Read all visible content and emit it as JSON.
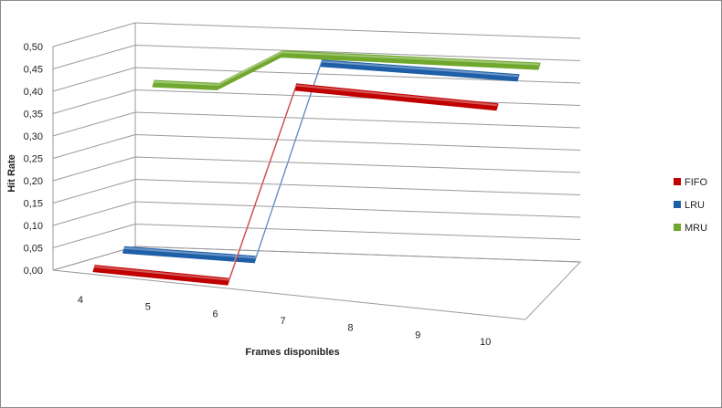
{
  "chart_data": {
    "type": "line",
    "style": "3d-line",
    "categories": [
      "4",
      "5",
      "6",
      "7",
      "8",
      "9",
      "10"
    ],
    "series": [
      {
        "name": "FIFO",
        "values": [
          0.0,
          0.0,
          0.0,
          0.45,
          0.45,
          0.45,
          0.45
        ]
      },
      {
        "name": "LRU",
        "values": [
          0.02,
          0.02,
          0.02,
          0.47,
          0.47,
          0.47,
          0.47
        ]
      },
      {
        "name": "MRU",
        "values": [
          0.37,
          0.37,
          0.45,
          0.45,
          0.45,
          0.45,
          0.45
        ]
      }
    ],
    "colors": {
      "FIFO": "#c00000",
      "LRU": "#1f5fa8",
      "MRU": "#6fa82d"
    },
    "y_ticks": [
      "0,00",
      "0,05",
      "0,10",
      "0,15",
      "0,20",
      "0,25",
      "0,30",
      "0,35",
      "0,40",
      "0,45",
      "0,50"
    ],
    "ylim": [
      0,
      0.5
    ],
    "xlabel": "Frames disponibles",
    "ylabel": "Hit Rate",
    "grid": true,
    "legend_position": "right"
  }
}
